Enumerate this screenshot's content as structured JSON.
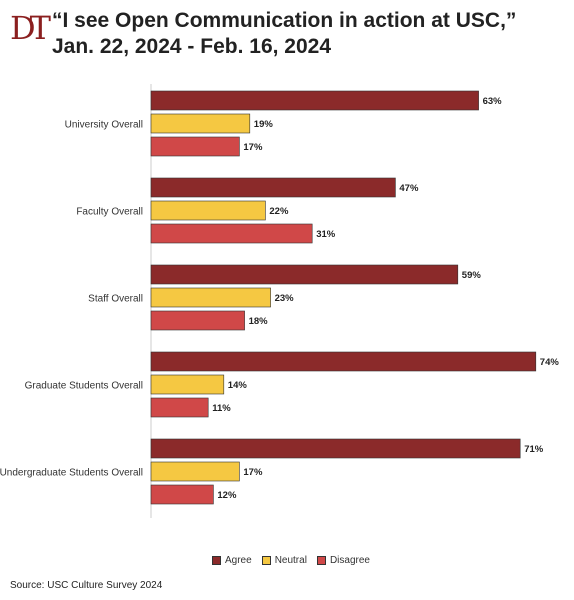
{
  "header": {
    "logo_text": "DT",
    "title_line1": "“I see Open Communication in action at USC,”",
    "title_line2": "Jan. 22, 2024 - Feb. 16, 2024"
  },
  "chart_data": {
    "type": "bar",
    "orientation": "horizontal",
    "categories": [
      "University Overall",
      "Faculty Overall",
      "Staff Overall",
      "Graduate Students Overall",
      "Undergraduate Students Overall"
    ],
    "series": [
      {
        "name": "Agree",
        "color": "#8b2a2a",
        "values": [
          63,
          47,
          59,
          74,
          71
        ]
      },
      {
        "name": "Neutral",
        "color": "#f5c842",
        "values": [
          19,
          22,
          23,
          14,
          17
        ]
      },
      {
        "name": "Disagree",
        "color": "#d04848",
        "values": [
          17,
          31,
          18,
          11,
          12
        ]
      }
    ],
    "value_suffix": "%",
    "xlim": [
      0,
      75
    ],
    "grid": false,
    "legend_position": "bottom"
  },
  "footer": {
    "source": "Source: USC Culture Survey 2024"
  }
}
